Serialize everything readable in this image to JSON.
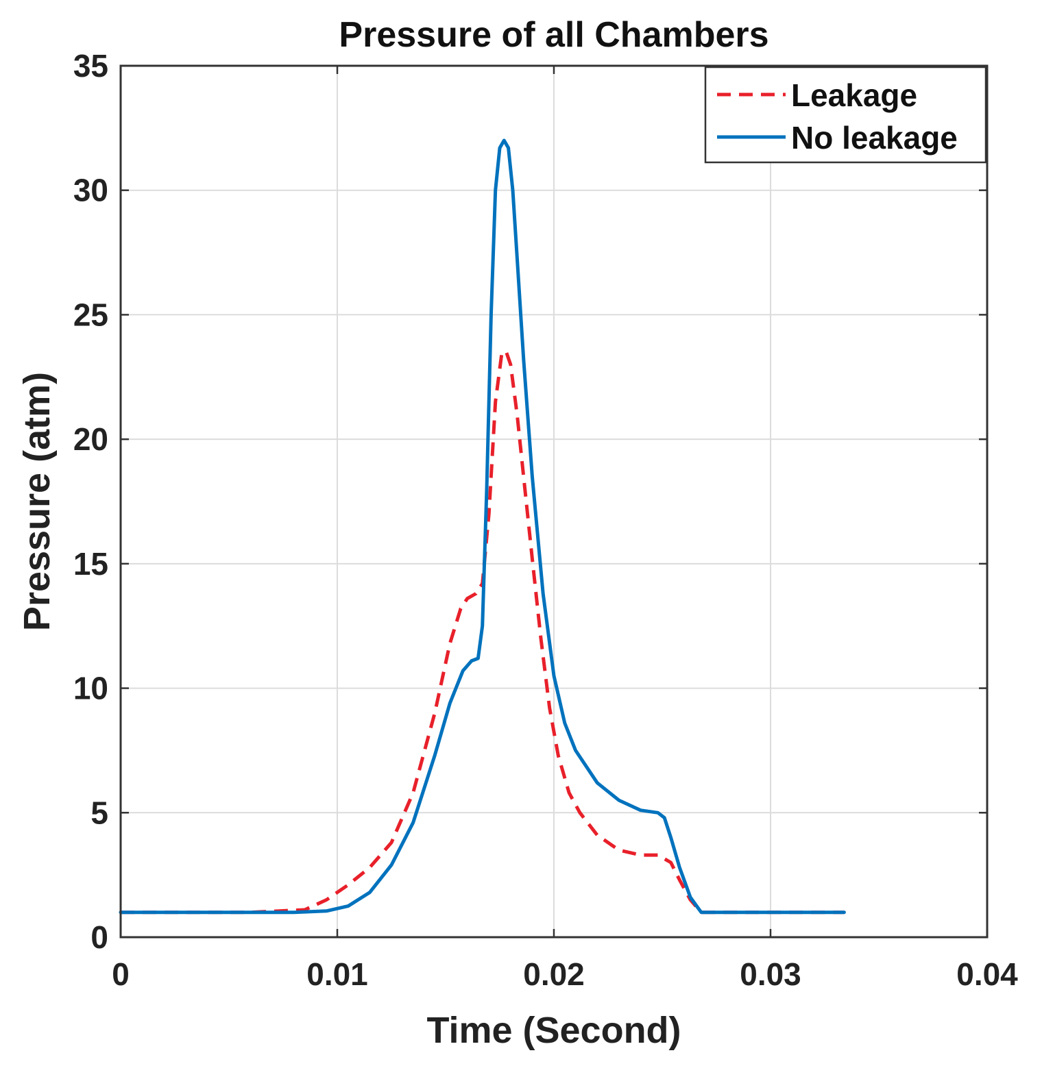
{
  "chart_data": {
    "type": "line",
    "title": "Pressure of all Chambers",
    "xlabel": "Time (Second)",
    "ylabel": "Pressure (atm)",
    "xlim": [
      0,
      0.04
    ],
    "ylim": [
      0,
      35
    ],
    "xticks": [
      0,
      0.01,
      0.02,
      0.03,
      0.04
    ],
    "xtick_labels": [
      "0",
      "0.01",
      "0.02",
      "0.03",
      "0.04"
    ],
    "yticks": [
      0,
      5,
      10,
      15,
      20,
      25,
      30,
      35
    ],
    "ytick_labels": [
      "0",
      "5",
      "10",
      "15",
      "20",
      "25",
      "30",
      "35"
    ],
    "grid": true,
    "legend_position": "top-right",
    "series": [
      {
        "name": "Leakage",
        "color": "#e8202a",
        "style": "dashed",
        "x": [
          0,
          0.006,
          0.0085,
          0.0095,
          0.0105,
          0.0115,
          0.0125,
          0.0135,
          0.0145,
          0.0152,
          0.0157,
          0.016,
          0.0164,
          0.0167,
          0.017,
          0.0173,
          0.0176,
          0.0178,
          0.018,
          0.0183,
          0.0186,
          0.019,
          0.0194,
          0.0198,
          0.0202,
          0.0207,
          0.0212,
          0.022,
          0.023,
          0.024,
          0.0248,
          0.0254,
          0.0258,
          0.0263,
          0.0268,
          0.028,
          0.031,
          0.0334
        ],
        "y": [
          1.0,
          1.0,
          1.1,
          1.5,
          2.1,
          2.8,
          3.8,
          5.8,
          9.0,
          11.8,
          13.2,
          13.6,
          13.8,
          14.2,
          17.0,
          21.5,
          23.5,
          23.5,
          23.0,
          21.0,
          18.5,
          15.2,
          12.0,
          9.2,
          7.3,
          5.8,
          5.0,
          4.1,
          3.5,
          3.3,
          3.3,
          3.0,
          2.3,
          1.5,
          1.0,
          1.0,
          1.0,
          1.0
        ]
      },
      {
        "name": "No leakage",
        "color": "#0072bd",
        "style": "solid",
        "x": [
          0,
          0.008,
          0.0095,
          0.0105,
          0.0115,
          0.0125,
          0.0135,
          0.0145,
          0.0152,
          0.0158,
          0.0162,
          0.0165,
          0.0167,
          0.0169,
          0.0171,
          0.0173,
          0.0175,
          0.0177,
          0.0179,
          0.0181,
          0.0183,
          0.0186,
          0.019,
          0.0195,
          0.02,
          0.0205,
          0.021,
          0.022,
          0.023,
          0.024,
          0.0248,
          0.0251,
          0.0254,
          0.0258,
          0.0263,
          0.0268,
          0.028,
          0.031,
          0.0334
        ],
        "y": [
          1.0,
          1.0,
          1.05,
          1.25,
          1.8,
          2.9,
          4.6,
          7.3,
          9.4,
          10.7,
          11.1,
          11.2,
          12.5,
          18.0,
          25.0,
          30.0,
          31.7,
          32.0,
          31.7,
          30.0,
          27.3,
          23.2,
          18.5,
          13.8,
          10.5,
          8.6,
          7.5,
          6.2,
          5.5,
          5.1,
          5.0,
          4.8,
          4.0,
          2.8,
          1.6,
          1.0,
          1.0,
          1.0,
          1.0
        ]
      }
    ]
  }
}
